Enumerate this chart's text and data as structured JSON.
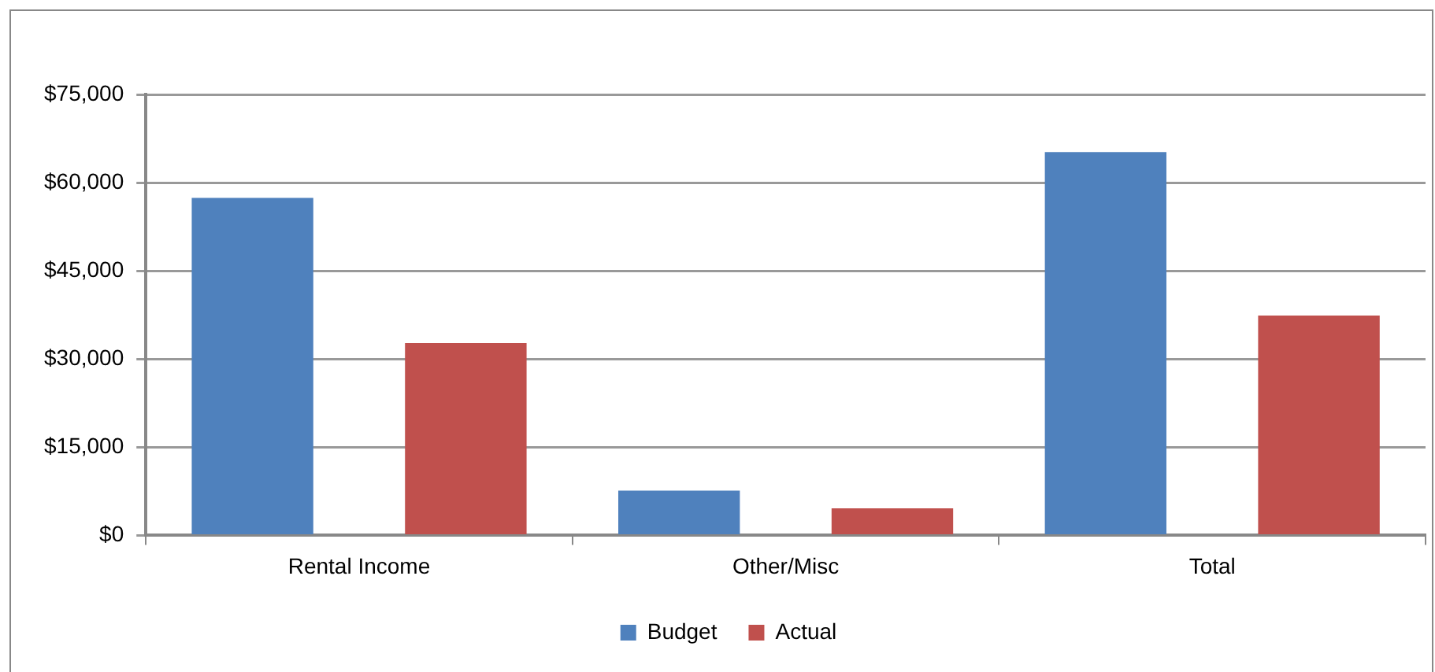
{
  "chart_data": {
    "type": "bar",
    "categories": [
      "Rental Income",
      "Other/Misc",
      "Total"
    ],
    "series": [
      {
        "name": "Budget",
        "color": "#4f81bd",
        "values": [
          57400,
          7600,
          65200
        ]
      },
      {
        "name": "Actual",
        "color": "#c0504d",
        "values": [
          32700,
          4600,
          37400
        ]
      }
    ],
    "ylim": [
      0,
      75000
    ],
    "yticks": [
      {
        "value": 0,
        "label": "$0"
      },
      {
        "value": 15000,
        "label": "$15,000"
      },
      {
        "value": 30000,
        "label": "$30,000"
      },
      {
        "value": 45000,
        "label": "$45,000"
      },
      {
        "value": 60000,
        "label": "$60,000"
      },
      {
        "value": 75000,
        "label": "$75,000"
      }
    ],
    "grid": "y",
    "legend": "bottom"
  }
}
